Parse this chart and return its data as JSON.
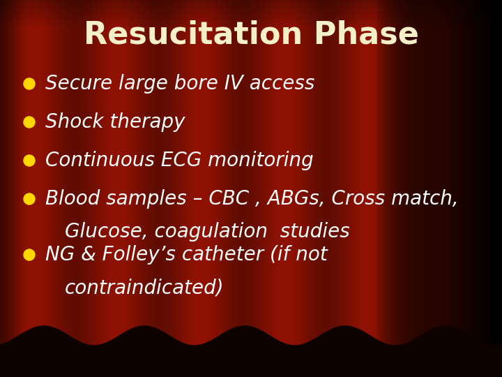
{
  "title": "Resucitation Phase",
  "title_color": "#F5F0C8",
  "title_fontsize": 32,
  "bullet_color": "#FFD700",
  "text_color": "#FFFFFF",
  "text_fontsize": 20,
  "bullet_items": [
    [
      "Secure large bore IV access",
      null
    ],
    [
      "Shock therapy",
      null
    ],
    [
      "Continuous ECG monitoring",
      null
    ],
    [
      "Blood samples – CBC , ABGs, Cross match,",
      "Glucose, coagulation  studies"
    ],
    [
      "NG & Folley’s catheter (if not",
      "contraindicated)"
    ]
  ]
}
